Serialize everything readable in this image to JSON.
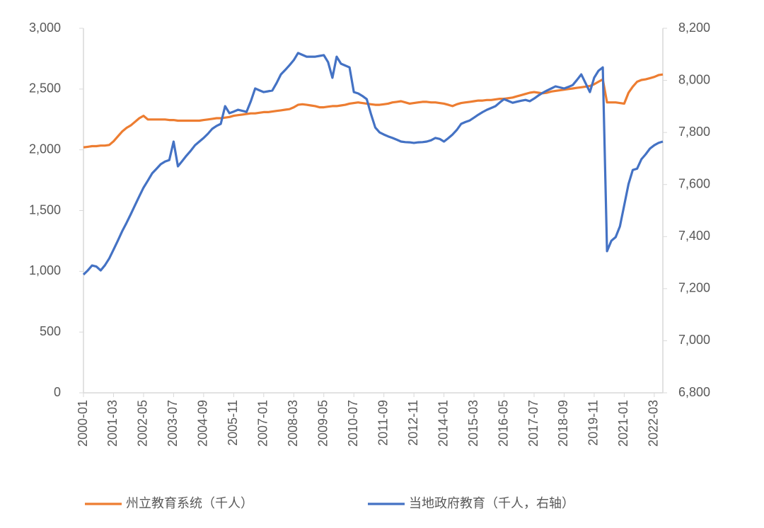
{
  "chart_data": {
    "type": "line",
    "x": [
      "2000-01",
      "2000-03",
      "2000-05",
      "2000-07",
      "2000-09",
      "2000-11",
      "2001-01",
      "2001-03",
      "2001-05",
      "2001-07",
      "2001-09",
      "2001-11",
      "2002-01",
      "2002-03",
      "2002-05",
      "2002-07",
      "2002-09",
      "2002-11",
      "2003-01",
      "2003-03",
      "2003-05",
      "2003-07",
      "2003-09",
      "2003-11",
      "2004-01",
      "2004-03",
      "2004-05",
      "2004-07",
      "2004-09",
      "2004-11",
      "2005-01",
      "2005-03",
      "2005-05",
      "2005-07",
      "2005-09",
      "2005-11",
      "2006-01",
      "2006-03",
      "2006-05",
      "2006-07",
      "2006-09",
      "2006-11",
      "2007-01",
      "2007-03",
      "2007-05",
      "2007-07",
      "2007-09",
      "2007-11",
      "2008-01",
      "2008-03",
      "2008-05",
      "2008-07",
      "2008-09",
      "2008-11",
      "2009-01",
      "2009-03",
      "2009-05",
      "2009-07",
      "2009-09",
      "2009-11",
      "2010-01",
      "2010-03",
      "2010-05",
      "2010-07",
      "2010-09",
      "2010-11",
      "2011-01",
      "2011-03",
      "2011-05",
      "2011-07",
      "2011-09",
      "2011-11",
      "2012-01",
      "2012-03",
      "2012-05",
      "2012-07",
      "2012-09",
      "2012-11",
      "2013-01",
      "2013-03",
      "2013-05",
      "2013-07",
      "2013-09",
      "2013-11",
      "2014-01",
      "2014-03",
      "2014-05",
      "2014-07",
      "2014-09",
      "2014-11",
      "2015-01",
      "2015-03",
      "2015-05",
      "2015-07",
      "2015-09",
      "2015-11",
      "2016-01",
      "2016-03",
      "2016-05",
      "2016-07",
      "2016-09",
      "2016-11",
      "2017-01",
      "2017-03",
      "2017-05",
      "2017-07",
      "2017-09",
      "2017-11",
      "2018-01",
      "2018-03",
      "2018-05",
      "2018-07",
      "2018-09",
      "2018-11",
      "2019-01",
      "2019-03",
      "2019-05",
      "2019-07",
      "2019-09",
      "2019-11",
      "2020-01",
      "2020-03",
      "2020-05",
      "2020-07",
      "2020-09",
      "2020-11",
      "2021-01",
      "2021-03",
      "2021-05",
      "2021-07",
      "2021-09",
      "2021-11",
      "2022-01",
      "2022-03",
      "2022-05",
      "2022-07"
    ],
    "xticks": [
      "2000-01",
      "2001-03",
      "2002-05",
      "2003-07",
      "2004-09",
      "2005-11",
      "2007-01",
      "2008-03",
      "2009-05",
      "2010-07",
      "2011-09",
      "2012-11",
      "2014-01",
      "2015-03",
      "2016-05",
      "2017-07",
      "2018-09",
      "2019-11",
      "2021-01",
      "2022-03"
    ],
    "series": [
      {
        "name": "州立教育系统（千人）",
        "color": "#ed7d31",
        "values": [
          2020,
          2025,
          2030,
          2030,
          2035,
          2035,
          2040,
          2070,
          2110,
          2150,
          2180,
          2200,
          2230,
          2260,
          2280,
          2250,
          2250,
          2250,
          2250,
          2250,
          2245,
          2245,
          2240,
          2240,
          2240,
          2240,
          2240,
          2240,
          2245,
          2250,
          2255,
          2260,
          2260,
          2265,
          2270,
          2280,
          2285,
          2290,
          2295,
          2300,
          2300,
          2305,
          2310,
          2310,
          2315,
          2320,
          2325,
          2330,
          2335,
          2350,
          2370,
          2375,
          2370,
          2365,
          2360,
          2350,
          2350,
          2355,
          2360,
          2360,
          2365,
          2370,
          2380,
          2385,
          2390,
          2385,
          2380,
          2375,
          2370,
          2370,
          2375,
          2380,
          2390,
          2395,
          2400,
          2390,
          2380,
          2385,
          2390,
          2395,
          2395,
          2390,
          2390,
          2385,
          2380,
          2370,
          2360,
          2375,
          2385,
          2390,
          2395,
          2400,
          2405,
          2405,
          2410,
          2410,
          2415,
          2420,
          2420,
          2425,
          2430,
          2440,
          2450,
          2460,
          2470,
          2475,
          2470,
          2465,
          2470,
          2480,
          2485,
          2490,
          2495,
          2500,
          2505,
          2510,
          2515,
          2520,
          2525,
          2540,
          2560,
          2580,
          2390,
          2390,
          2390,
          2385,
          2380,
          2470,
          2520,
          2560,
          2575,
          2580,
          2590,
          2600,
          2615,
          2620
        ]
      },
      {
        "name": "当地政府教育（千人，右轴）",
        "color": "#4472c4",
        "axis": "y2",
        "values": [
          7254,
          7270,
          7289,
          7285,
          7270,
          7290,
          7316,
          7350,
          7384,
          7420,
          7452,
          7485,
          7520,
          7555,
          7588,
          7615,
          7643,
          7660,
          7678,
          7688,
          7694,
          7765,
          7670,
          7690,
          7711,
          7730,
          7751,
          7765,
          7779,
          7795,
          7814,
          7825,
          7833,
          7901,
          7874,
          7880,
          7887,
          7883,
          7879,
          7920,
          7969,
          7962,
          7955,
          7958,
          7961,
          7990,
          8023,
          8040,
          8058,
          8078,
          8105,
          8098,
          8091,
          8091,
          8091,
          8094,
          8097,
          8070,
          8010,
          8091,
          8064,
          8057,
          8050,
          7955,
          7950,
          7940,
          7928,
          7870,
          7819,
          7800,
          7792,
          7785,
          7779,
          7772,
          7765,
          7763,
          7762,
          7760,
          7762,
          7763,
          7765,
          7770,
          7779,
          7775,
          7765,
          7778,
          7792,
          7810,
          7833,
          7840,
          7846,
          7857,
          7868,
          7878,
          7887,
          7894,
          7901,
          7915,
          7928,
          7921,
          7914,
          7918,
          7922,
          7925,
          7920,
          7930,
          7942,
          7952,
          7961,
          7969,
          7977,
          7973,
          7969,
          7975,
          7982,
          8002,
          8023,
          7989,
          7955,
          8010,
          8037,
          8050,
          7344,
          7384,
          7398,
          7439,
          7520,
          7602,
          7656,
          7661,
          7697,
          7716,
          7738,
          7751,
          7760,
          7765
        ]
      }
    ],
    "ylim": [
      0,
      3000
    ],
    "yticks": [
      0,
      500,
      {
        "value": 1000,
        "label": "1,000"
      },
      {
        "value": 1500,
        "label": "1,500"
      },
      {
        "value": 2000,
        "label": "2,000"
      },
      {
        "value": 2500,
        "label": "2,500"
      },
      {
        "value": 3000,
        "label": "3,000"
      }
    ],
    "y2lim": [
      6800,
      8200
    ],
    "y2ticks": [
      {
        "value": 6800,
        "label": "6,800"
      },
      {
        "value": 7000,
        "label": "7,000"
      },
      {
        "value": 7200,
        "label": "7,200"
      },
      {
        "value": 7400,
        "label": "7,400"
      },
      {
        "value": 7600,
        "label": "7,600"
      },
      {
        "value": 7800,
        "label": "7,800"
      },
      {
        "value": 8000,
        "label": "8,000"
      },
      {
        "value": 8200,
        "label": "8,200"
      }
    ],
    "legend": "bottom"
  }
}
